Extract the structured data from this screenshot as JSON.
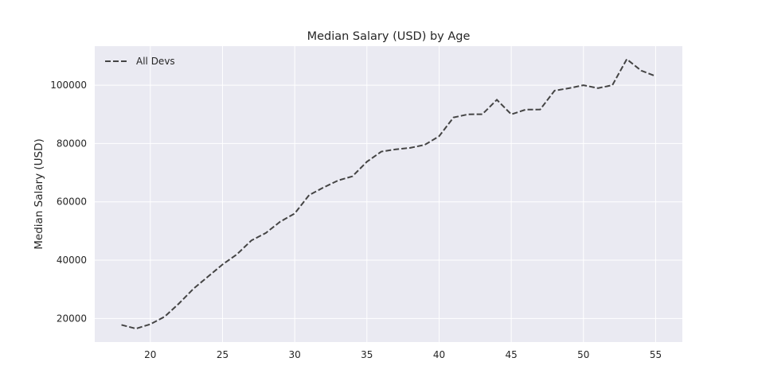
{
  "chart_data": {
    "type": "line",
    "title": "Median Salary (USD) by Age",
    "xlabel": "",
    "ylabel": "Median Salary (USD)",
    "xlim": [
      16.15,
      56.85
    ],
    "ylim": [
      11900,
      113400
    ],
    "xticks": [
      20,
      25,
      30,
      35,
      40,
      45,
      50,
      55
    ],
    "yticks": [
      20000,
      40000,
      60000,
      80000,
      100000
    ],
    "grid": true,
    "legend_position": "top-left",
    "colors": {
      "plot_bg": "#eaeaf2",
      "grid": "#ffffff",
      "line": "#444444"
    },
    "series": [
      {
        "name": "All Devs",
        "line_style": "dashed",
        "x": [
          18,
          19,
          20,
          21,
          22,
          23,
          24,
          25,
          26,
          27,
          28,
          29,
          30,
          31,
          32,
          33,
          34,
          35,
          36,
          37,
          38,
          39,
          40,
          41,
          42,
          43,
          44,
          45,
          46,
          47,
          48,
          49,
          50,
          51,
          52,
          53,
          54,
          55
        ],
        "y": [
          17784,
          16500,
          18012,
          20628,
          25206,
          30252,
          34368,
          38496,
          42000,
          46752,
          49320,
          53200,
          56000,
          62316,
          64928,
          67317,
          68748,
          73752,
          77232,
          78000,
          78508,
          79536,
          82488,
          88935,
          90000,
          90056,
          95000,
          90000,
          91633,
          91660,
          98150,
          98964,
          100000,
          98988,
          100000,
          108923,
          105000,
          103117
        ]
      }
    ]
  }
}
